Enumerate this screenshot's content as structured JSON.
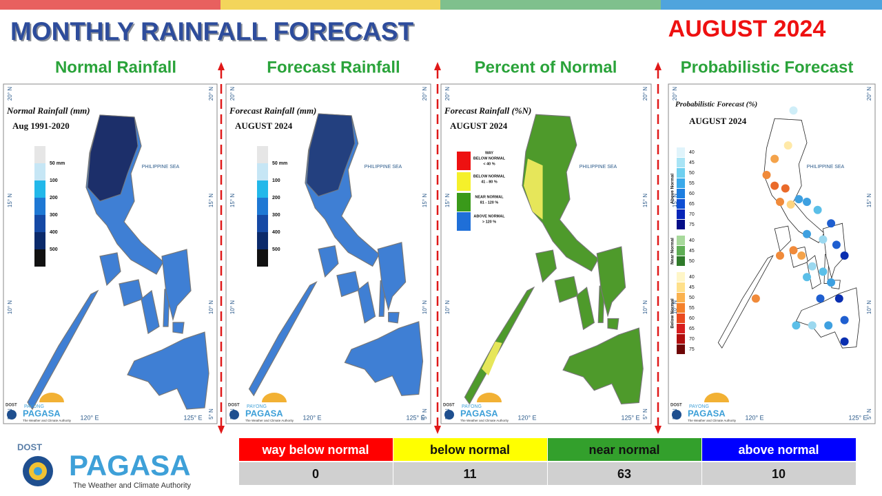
{
  "header": {
    "title": "MONTHLY RAINFALL FORECAST",
    "month": "AUGUST 2024"
  },
  "map_labels": {
    "sea": "PHILIPPINE SEA",
    "lat": [
      "20° N",
      "15° N",
      "10° N",
      "5° N"
    ],
    "lon": [
      "120° E",
      "125° E"
    ],
    "logo": {
      "dost": "DOST",
      "payong": "PAYONG",
      "pagasa": "PAGASA",
      "tagline": "The Weather and Climate Authority"
    }
  },
  "panels": [
    {
      "heading": "Normal Rainfall",
      "map_title": "Normal Rainfall (mm)",
      "map_subtitle": "Aug 1991-2020",
      "legend": [
        "50 mm",
        "100",
        "200",
        "300",
        "400",
        "500"
      ]
    },
    {
      "heading": "Forecast Rainfall",
      "map_title": "Forecast Rainfall (mm)",
      "map_subtitle": "AUGUST 2024",
      "legend": [
        "50 mm",
        "100",
        "200",
        "300",
        "400",
        "500"
      ]
    },
    {
      "heading": "Percent of Normal",
      "map_title": "Forecast Rainfall (%N)",
      "map_subtitle": "AUGUST 2024",
      "legend": [
        [
          "WAY",
          "BELOW NORMAL",
          "< 40 %"
        ],
        [
          "BELOW NORMAL",
          "41 - 80 %"
        ],
        [
          "NEAR NORMAL",
          "81 - 120 %"
        ],
        [
          "ABOVE NORMAL",
          "> 120 %"
        ]
      ]
    },
    {
      "heading": "Probabilistic Forecast",
      "map_title": "Probabilistic Forecast (%)",
      "map_subtitle": "AUGUST 2024",
      "legend": [
        {
          "name": "Above Normal",
          "labels": [
            "40",
            "45",
            "50",
            "55",
            "60",
            "65",
            "70",
            "75"
          ]
        },
        {
          "name": "Near Normal",
          "labels": [
            "40",
            "45",
            "50"
          ]
        },
        {
          "name": "Below Normal",
          "labels": [
            "40",
            "45",
            "50",
            "55",
            "60",
            "65",
            "70",
            "75"
          ]
        }
      ]
    }
  ],
  "table": {
    "header": [
      "way below normal",
      "below normal",
      "near normal",
      "above normal"
    ],
    "values": [
      0,
      11,
      63,
      10
    ]
  },
  "logo": {
    "dost": "DOST",
    "name": "PAGASA",
    "tagline": "The Weather and Climate Authority"
  }
}
